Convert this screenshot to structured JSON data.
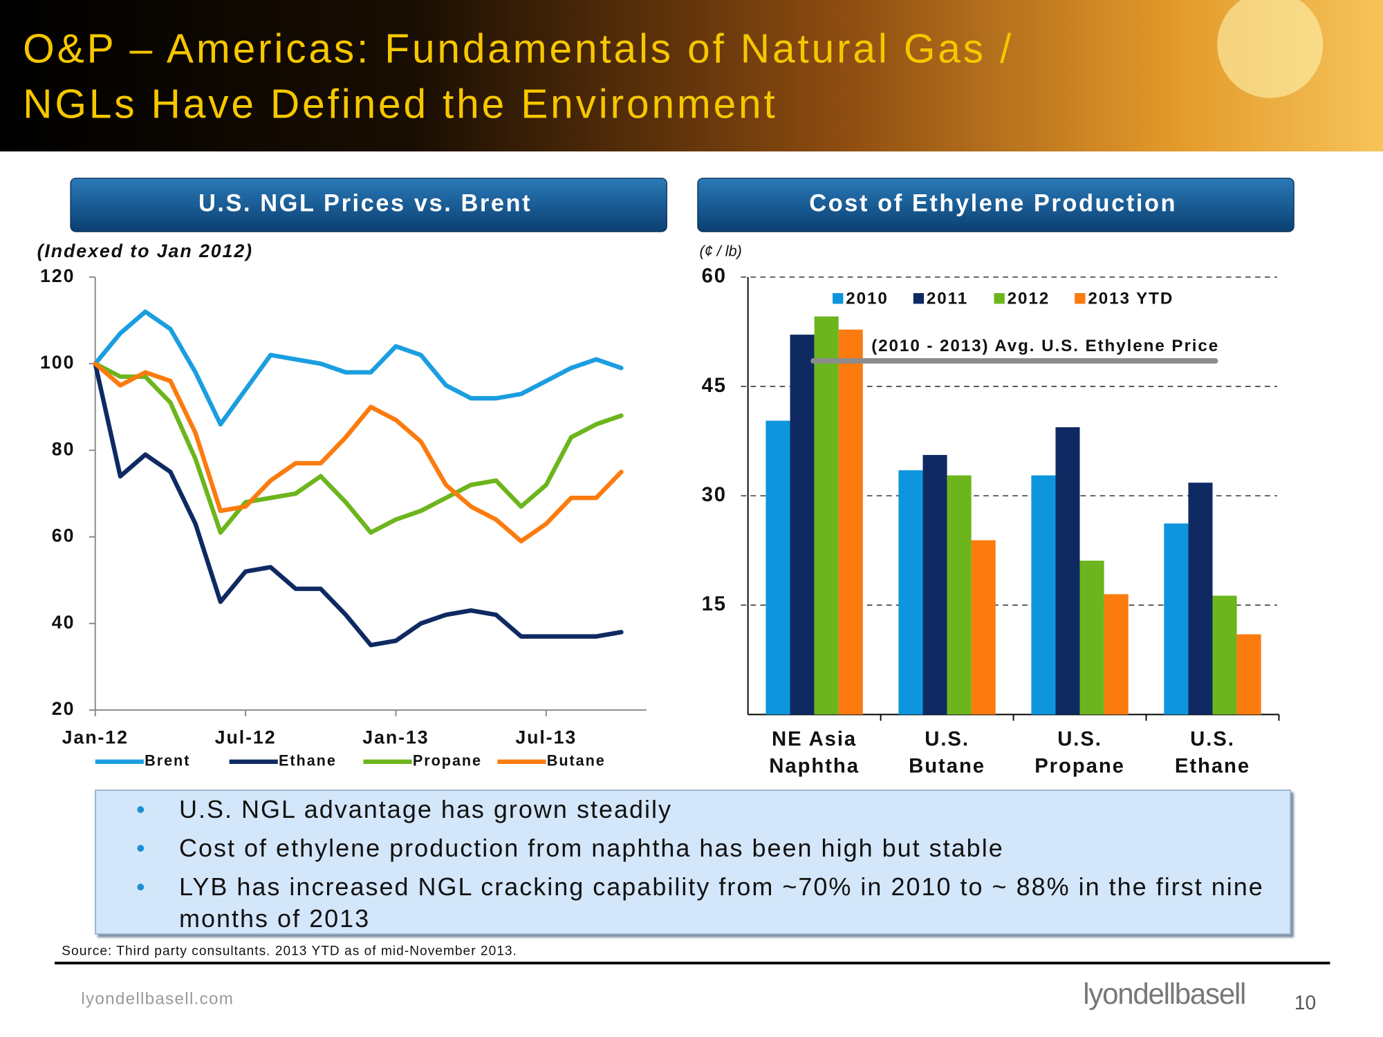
{
  "header": {
    "title": [
      "O&P – Americas: Fundamentals of Natural Gas /",
      "NGLs Have Defined the Environment"
    ]
  },
  "chart_data": [
    {
      "type": "line",
      "title": "U.S. NGL Prices vs. Brent",
      "y_label": "(Indexed to Jan 2012)",
      "categories": [
        "Jan-12",
        null,
        null,
        null,
        null,
        null,
        "Jul-12",
        null,
        null,
        null,
        null,
        null,
        "Jan-13",
        null,
        null,
        null,
        null,
        null,
        "Jul-13",
        null,
        null,
        null
      ],
      "series": [
        {
          "name": "Brent",
          "color": "#1b9ee0",
          "values": [
            100,
            107,
            112,
            108,
            98,
            86,
            94,
            102,
            101,
            100,
            98,
            98,
            104,
            102,
            95,
            92,
            92,
            93,
            96,
            99,
            101,
            99
          ]
        },
        {
          "name": "Ethane",
          "color": "#0f2a62",
          "values": [
            100,
            74,
            79,
            75,
            63,
            45,
            52,
            53,
            48,
            48,
            42,
            35,
            36,
            40,
            42,
            43,
            42,
            37,
            37,
            37,
            37,
            38
          ]
        },
        {
          "name": "Propane",
          "color": "#6cb51c",
          "values": [
            100,
            97,
            97,
            91,
            78,
            61,
            68,
            69,
            70,
            74,
            68,
            61,
            64,
            66,
            69,
            72,
            73,
            67,
            72,
            83,
            86,
            88
          ]
        },
        {
          "name": "Butane",
          "color": "#fb7b0f",
          "values": [
            100,
            95,
            98,
            96,
            84,
            66,
            67,
            73,
            77,
            77,
            83,
            90,
            87,
            82,
            72,
            67,
            64,
            59,
            63,
            69,
            69,
            75
          ]
        }
      ],
      "ylim": [
        20,
        120
      ],
      "yticks": [
        20,
        40,
        60,
        80,
        100,
        120
      ]
    },
    {
      "type": "bar",
      "title": "Cost of Ethylene Production",
      "y_label": "(¢ / lb)",
      "categories": [
        [
          "NE Asia",
          "Naphtha"
        ],
        [
          "U.S.",
          "Butane"
        ],
        [
          "U.S.",
          "Propane"
        ],
        [
          "U.S.",
          "Ethane"
        ]
      ],
      "series": [
        {
          "name": "2010",
          "color": "#0d95dd",
          "values": [
            40.3,
            33.5,
            32.8,
            26.2
          ]
        },
        {
          "name": "2011",
          "color": "#0f2a62",
          "values": [
            52.1,
            35.6,
            39.4,
            31.8
          ]
        },
        {
          "name": "2012",
          "color": "#6cb51c",
          "values": [
            54.6,
            32.8,
            21.1,
            16.3
          ]
        },
        {
          "name": "2013 YTD",
          "color": "#fb7b0f",
          "values": [
            52.8,
            23.9,
            16.5,
            11.0
          ]
        }
      ],
      "annotation": {
        "value": 48.5,
        "label": "(2010 - 2013) Avg. U.S. Ethylene Price"
      },
      "ylim": [
        0,
        60
      ],
      "yticks": [
        15,
        30,
        45,
        60
      ],
      "grid": true
    }
  ],
  "bullets": [
    "U.S. NGL advantage has grown steadily",
    "Cost of ethylene production from naphtha has been high but stable",
    "LYB has increased NGL cracking capability from ~70% in 2010 to ~ 88% in the first nine months of 2013"
  ],
  "source": "Source: Third party consultants.  2013 YTD as of mid-November 2013.",
  "footer": {
    "url": "lyondellbasell.com",
    "logo": "lyondellbasell",
    "page": "10"
  }
}
